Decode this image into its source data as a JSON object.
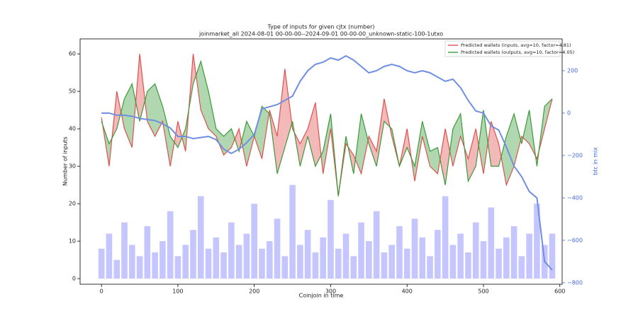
{
  "chart_data": {
    "type": "line",
    "title": "Type of inputs for given cjtx (number)",
    "subtitle": "joinmarket_all 2024-08-01 00-00-00--2024-09-01 00-00-00_unknown-static-100-1utxo",
    "xlabel": "Coinjoin in time",
    "ylabel": "Number of inputs",
    "y2label": "btc in mix",
    "x": [
      0,
      10,
      20,
      30,
      40,
      50,
      60,
      70,
      80,
      90,
      100,
      110,
      120,
      130,
      140,
      150,
      160,
      170,
      180,
      190,
      200,
      210,
      220,
      230,
      240,
      250,
      260,
      270,
      280,
      290,
      300,
      310,
      320,
      330,
      340,
      350,
      360,
      370,
      380,
      390,
      400,
      410,
      420,
      430,
      440,
      450,
      460,
      470,
      480,
      490,
      500,
      510,
      520,
      530,
      540,
      550,
      560,
      570,
      580,
      590
    ],
    "series": [
      {
        "name": "Predicted wallets (inputs, avg=10, factor=4.81)",
        "color": "#e05050",
        "values": [
          43,
          30,
          50,
          40,
          35,
          60,
          42,
          38,
          42,
          30,
          42,
          34,
          60,
          45,
          40,
          38,
          33,
          35,
          40,
          30,
          38,
          32,
          45,
          38,
          56,
          40,
          36,
          40,
          47,
          28,
          40,
          22,
          36,
          33,
          28,
          38,
          34,
          48,
          38,
          30,
          40,
          26,
          38,
          30,
          28,
          40,
          30,
          38,
          32,
          40,
          28,
          42,
          36,
          25,
          30,
          38,
          36,
          32,
          40,
          48
        ]
      },
      {
        "name": "Predicted wallets (outputs, avg=10, factor=4.05)",
        "color": "#3a9a3a",
        "values": [
          42,
          36,
          40,
          48,
          52,
          42,
          50,
          52,
          46,
          38,
          35,
          40,
          52,
          58,
          50,
          40,
          38,
          40,
          34,
          42,
          38,
          46,
          44,
          28,
          35,
          42,
          30,
          38,
          30,
          34,
          44,
          22,
          38,
          28,
          44,
          36,
          30,
          42,
          40,
          30,
          35,
          30,
          42,
          34,
          35,
          25,
          40,
          44,
          26,
          30,
          45,
          30,
          30,
          38,
          44,
          36,
          45,
          30,
          46,
          48
        ]
      },
      {
        "name": "btc in mix",
        "color": "#6f8fe0",
        "axis": "y2",
        "values": [
          0,
          0,
          -10,
          -10,
          -15,
          -25,
          -30,
          -35,
          -50,
          -70,
          -110,
          -110,
          -120,
          -115,
          -110,
          -125,
          -170,
          -190,
          -170,
          -140,
          -100,
          20,
          30,
          40,
          60,
          80,
          150,
          200,
          230,
          240,
          260,
          250,
          270,
          250,
          220,
          190,
          200,
          220,
          230,
          220,
          200,
          190,
          200,
          190,
          170,
          150,
          160,
          120,
          60,
          10,
          0,
          -60,
          -80,
          -160,
          -250,
          -300,
          -370,
          -400,
          -700,
          -740
        ]
      }
    ],
    "bars": {
      "color": "#7070ff",
      "values": [
        8,
        12,
        5,
        15,
        9,
        6,
        14,
        7,
        10,
        18,
        6,
        9,
        13,
        22,
        8,
        11,
        7,
        15,
        9,
        12,
        20,
        8,
        10,
        16,
        6,
        25,
        9,
        13,
        7,
        11,
        21,
        8,
        12,
        6,
        15,
        10,
        18,
        7,
        9,
        14,
        8,
        16,
        11,
        6,
        13,
        22,
        9,
        12,
        7,
        15,
        10,
        19,
        8,
        11,
        14,
        6,
        12,
        20,
        9,
        12
      ]
    },
    "xlim": [
      -28,
      603
    ],
    "ylim": [
      -1.5,
      64
    ],
    "y2lim": [
      -807,
      350
    ],
    "xticks": [
      0,
      100,
      200,
      300,
      400,
      500,
      600
    ],
    "yticks": [
      0,
      10,
      20,
      30,
      40,
      50,
      60
    ],
    "y2ticks": [
      {
        "value": -800,
        "label": "−800"
      },
      {
        "value": -600,
        "label": "−600"
      },
      {
        "value": -400,
        "label": "−400"
      },
      {
        "value": -200,
        "label": "−200"
      },
      0,
      200
    ],
    "legend": "upper right"
  }
}
